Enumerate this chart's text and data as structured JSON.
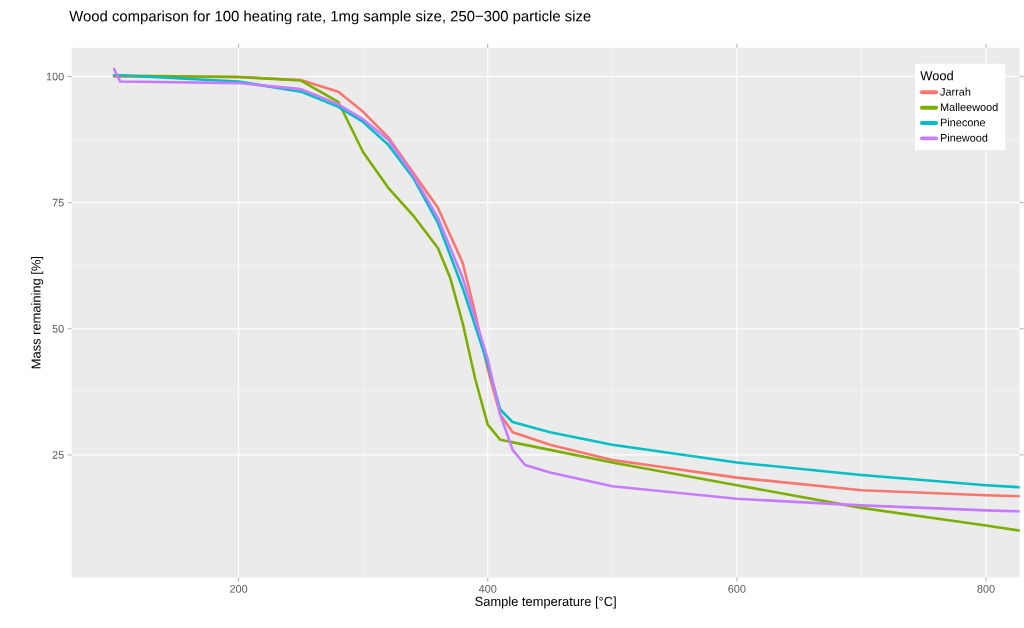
{
  "chart_data": {
    "type": "line",
    "title": "Wood comparison for 100 heating rate, 1mg sample size, 250−300 particle size",
    "xlabel": "Sample temperature [°C]",
    "ylabel": "Mass remaining [%]",
    "legend_title": "Wood",
    "xlim": [
      66,
      827
    ],
    "ylim": [
      0.7,
      105.7
    ],
    "xticks": [
      200,
      400,
      600,
      800
    ],
    "yticks": [
      25,
      50,
      75,
      100
    ],
    "grid": true,
    "legend": "top right",
    "marker": "none",
    "line_style": "solid",
    "series": [
      {
        "name": "Jarrah",
        "color": "#f8766d",
        "x": [
          100,
          200,
          250,
          280,
          300,
          320,
          340,
          360,
          380,
          390,
          400,
          410,
          420,
          450,
          500,
          600,
          700,
          800,
          827
        ],
        "values": [
          100,
          99.9,
          99.3,
          97,
          93,
          88,
          81,
          74,
          63,
          53,
          42,
          33,
          29.5,
          27,
          24,
          20.5,
          18,
          17,
          16.8
        ]
      },
      {
        "name": "Malleewood",
        "color": "#7cae00",
        "x": [
          100,
          200,
          250,
          280,
          290,
          300,
          320,
          340,
          360,
          370,
          380,
          390,
          400,
          410,
          450,
          500,
          600,
          700,
          800,
          827
        ],
        "values": [
          100.2,
          99.9,
          99.2,
          95,
          90,
          85,
          78,
          72.5,
          66,
          60,
          51,
          40,
          31,
          28,
          26,
          23.5,
          19,
          14.5,
          11,
          10
        ]
      },
      {
        "name": "Pinecone",
        "color": "#00bfc4",
        "x": [
          100,
          200,
          250,
          280,
          300,
          320,
          340,
          360,
          380,
          400,
          410,
          420,
          450,
          500,
          600,
          700,
          800,
          827
        ],
        "values": [
          100.3,
          99,
          97,
          94,
          91,
          86.5,
          80,
          71,
          58,
          43,
          34,
          31.5,
          29.5,
          27,
          23.5,
          21,
          19,
          18.6
        ]
      },
      {
        "name": "Pinewood",
        "color": "#c77cff",
        "x": [
          100,
          105,
          200,
          250,
          280,
          300,
          320,
          340,
          360,
          380,
          400,
          410,
          420,
          430,
          450,
          500,
          600,
          700,
          800,
          827
        ],
        "values": [
          101.5,
          99,
          98.7,
          97.5,
          94.5,
          91.5,
          87.5,
          80.5,
          72,
          60,
          44,
          33,
          26,
          23,
          21.5,
          18.8,
          16.3,
          15,
          14,
          13.8
        ]
      }
    ]
  }
}
